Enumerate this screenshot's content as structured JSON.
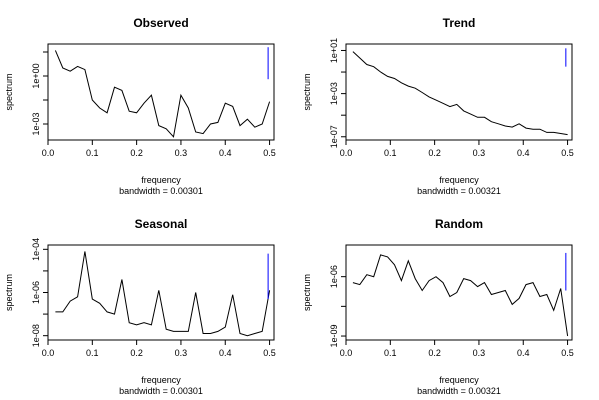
{
  "chart_data": [
    {
      "type": "line",
      "title": "Observed",
      "xlabel": "frequency",
      "ylabel": "spectrum",
      "bandwidth_label": "bandwidth = 0.00301",
      "log_y": true,
      "xlim": [
        0.0,
        0.51
      ],
      "ylim_log10": [
        -4.0,
        2.0
      ],
      "x_ticks": [
        0.0,
        0.1,
        0.2,
        0.3,
        0.4,
        0.5
      ],
      "x_tick_labels": [
        "0.0",
        "0.1",
        "0.2",
        "0.3",
        "0.4",
        "0.5"
      ],
      "y_ticks_log10": [
        -3,
        -1.5,
        0,
        1.5
      ],
      "y_tick_labels": [
        "1e-03",
        "",
        "1e+00",
        ""
      ],
      "x": [
        0.0167,
        0.0333,
        0.05,
        0.0667,
        0.0833,
        0.1,
        0.1167,
        0.1333,
        0.15,
        0.1667,
        0.1833,
        0.2,
        0.2167,
        0.2333,
        0.25,
        0.2667,
        0.2833,
        0.3,
        0.3167,
        0.3333,
        0.35,
        0.3667,
        0.3833,
        0.4,
        0.4167,
        0.4333,
        0.45,
        0.4667,
        0.4833,
        0.5
      ],
      "y_log10": [
        1.6,
        0.5,
        0.3,
        0.6,
        0.4,
        -1.5,
        -2.0,
        -2.3,
        -0.7,
        -0.9,
        -2.2,
        -2.3,
        -1.7,
        -1.2,
        -3.1,
        -3.3,
        -3.8,
        -1.2,
        -2.0,
        -3.5,
        -3.6,
        -3.0,
        -2.9,
        -1.7,
        -1.9,
        -3.1,
        -2.7,
        -3.2,
        -3.0,
        -1.6
      ],
      "ci_x": 0.4967,
      "ci_log10": [
        -0.2,
        1.8
      ]
    },
    {
      "type": "line",
      "title": "Trend",
      "xlabel": "frequency",
      "ylabel": "spectrum",
      "bandwidth_label": "bandwidth = 0.00321",
      "log_y": true,
      "xlim": [
        0.0,
        0.51
      ],
      "ylim_log10": [
        -7.3,
        1.6
      ],
      "x_ticks": [
        0.0,
        0.1,
        0.2,
        0.3,
        0.4,
        0.5
      ],
      "x_tick_labels": [
        "0.0",
        "0.1",
        "0.2",
        "0.3",
        "0.4",
        "0.5"
      ],
      "y_ticks_log10": [
        1,
        -1,
        -3,
        -5,
        -7
      ],
      "y_tick_labels": [
        "1e+01",
        "",
        "1e-03",
        "",
        "1e-07"
      ],
      "x": [
        0.0156,
        0.0312,
        0.0469,
        0.0625,
        0.0781,
        0.0938,
        0.1094,
        0.125,
        0.1406,
        0.1562,
        0.1719,
        0.1875,
        0.2031,
        0.2188,
        0.2344,
        0.25,
        0.2656,
        0.2812,
        0.2969,
        0.3125,
        0.3281,
        0.3438,
        0.3594,
        0.375,
        0.3906,
        0.4062,
        0.4219,
        0.4375,
        0.4531,
        0.4688,
        0.4844,
        0.5
      ],
      "y_log10": [
        0.9,
        0.3,
        -0.3,
        -0.5,
        -1.0,
        -1.4,
        -1.6,
        -2.0,
        -2.3,
        -2.5,
        -2.9,
        -3.3,
        -3.6,
        -3.9,
        -4.2,
        -4.0,
        -4.6,
        -4.9,
        -5.2,
        -5.2,
        -5.6,
        -5.8,
        -6.0,
        -6.1,
        -5.8,
        -6.2,
        -6.3,
        -6.3,
        -6.6,
        -6.6,
        -6.7,
        -6.8
      ],
      "ci_x": 0.4961,
      "ci_log10": [
        -0.5,
        1.2
      ]
    },
    {
      "type": "line",
      "title": "Seasonal",
      "xlabel": "frequency",
      "ylabel": "spectrum",
      "bandwidth_label": "bandwidth = 0.00301",
      "log_y": true,
      "xlim": [
        0.0,
        0.51
      ],
      "ylim_log10": [
        -8.2,
        -3.8
      ],
      "x_ticks": [
        0.0,
        0.1,
        0.2,
        0.3,
        0.4,
        0.5
      ],
      "x_tick_labels": [
        "0.0",
        "0.1",
        "0.2",
        "0.3",
        "0.4",
        "0.5"
      ],
      "y_ticks_log10": [
        -4,
        -5,
        -6,
        -7,
        -8
      ],
      "y_tick_labels": [
        "1e-04",
        "",
        "1e-06",
        "",
        "1e-08"
      ],
      "x": [
        0.0167,
        0.0333,
        0.05,
        0.0667,
        0.0833,
        0.1,
        0.1167,
        0.1333,
        0.15,
        0.1667,
        0.1833,
        0.2,
        0.2167,
        0.2333,
        0.25,
        0.2667,
        0.2833,
        0.3,
        0.3167,
        0.3333,
        0.35,
        0.3667,
        0.3833,
        0.4,
        0.4167,
        0.4333,
        0.45,
        0.4667,
        0.4833,
        0.5
      ],
      "y_log10": [
        -6.9,
        -6.9,
        -6.4,
        -6.2,
        -4.1,
        -6.3,
        -6.5,
        -6.9,
        -7.0,
        -5.4,
        -7.4,
        -7.5,
        -7.4,
        -7.5,
        -5.9,
        -7.7,
        -7.8,
        -7.8,
        -7.8,
        -6.0,
        -7.9,
        -7.9,
        -7.8,
        -7.6,
        -6.1,
        -7.9,
        -8.0,
        -7.9,
        -7.8,
        -5.9
      ],
      "ci_x": 0.4967,
      "ci_log10": [
        -6.3,
        -4.2
      ]
    },
    {
      "type": "line",
      "title": "Random",
      "xlabel": "frequency",
      "ylabel": "spectrum",
      "bandwidth_label": "bandwidth = 0.00321",
      "log_y": true,
      "xlim": [
        0.0,
        0.51
      ],
      "ylim_log10": [
        -9.2,
        -4.4
      ],
      "x_ticks": [
        0.0,
        0.1,
        0.2,
        0.3,
        0.4,
        0.5
      ],
      "x_tick_labels": [
        "0.0",
        "0.1",
        "0.2",
        "0.3",
        "0.4",
        "0.5"
      ],
      "y_ticks_log10": [
        -6,
        -7.5,
        -9
      ],
      "y_tick_labels": [
        "1e-06",
        "",
        "1e-09"
      ],
      "x": [
        0.0156,
        0.0312,
        0.0469,
        0.0625,
        0.0781,
        0.0938,
        0.1094,
        0.125,
        0.1406,
        0.1562,
        0.1719,
        0.1875,
        0.2031,
        0.2188,
        0.2344,
        0.25,
        0.2656,
        0.2812,
        0.2969,
        0.3125,
        0.3281,
        0.3438,
        0.3594,
        0.375,
        0.3906,
        0.4062,
        0.4219,
        0.4375,
        0.4531,
        0.4688,
        0.4844,
        0.5
      ],
      "y_log10": [
        -6.3,
        -6.4,
        -5.9,
        -6.0,
        -4.9,
        -5.0,
        -5.4,
        -6.2,
        -5.2,
        -6.1,
        -6.7,
        -6.2,
        -6.0,
        -6.3,
        -7.0,
        -6.8,
        -6.1,
        -6.2,
        -6.5,
        -6.3,
        -6.9,
        -6.8,
        -6.7,
        -7.4,
        -7.1,
        -6.4,
        -6.3,
        -7.0,
        -6.9,
        -7.7,
        -6.6,
        -9.0
      ],
      "ci_x": 0.4961,
      "ci_log10": [
        -6.7,
        -4.8
      ]
    }
  ]
}
